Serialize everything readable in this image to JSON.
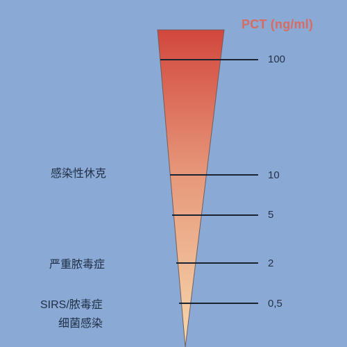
{
  "diagram": {
    "title": "PCT (ng/ml)",
    "levels": [
      "100",
      "10",
      "5",
      "2",
      "0,5"
    ],
    "labels": [
      "感染性休克",
      "严重脓毒症",
      "SIRS/脓毒症",
      "细菌感染"
    ],
    "colors": {
      "background": "#8aa9d4",
      "title": "#d86c63",
      "line": "#1a2332",
      "wedge_top": "#d2473d",
      "wedge_middle": "#e99f78",
      "wedge_bottom": "#f6d8ac"
    }
  }
}
